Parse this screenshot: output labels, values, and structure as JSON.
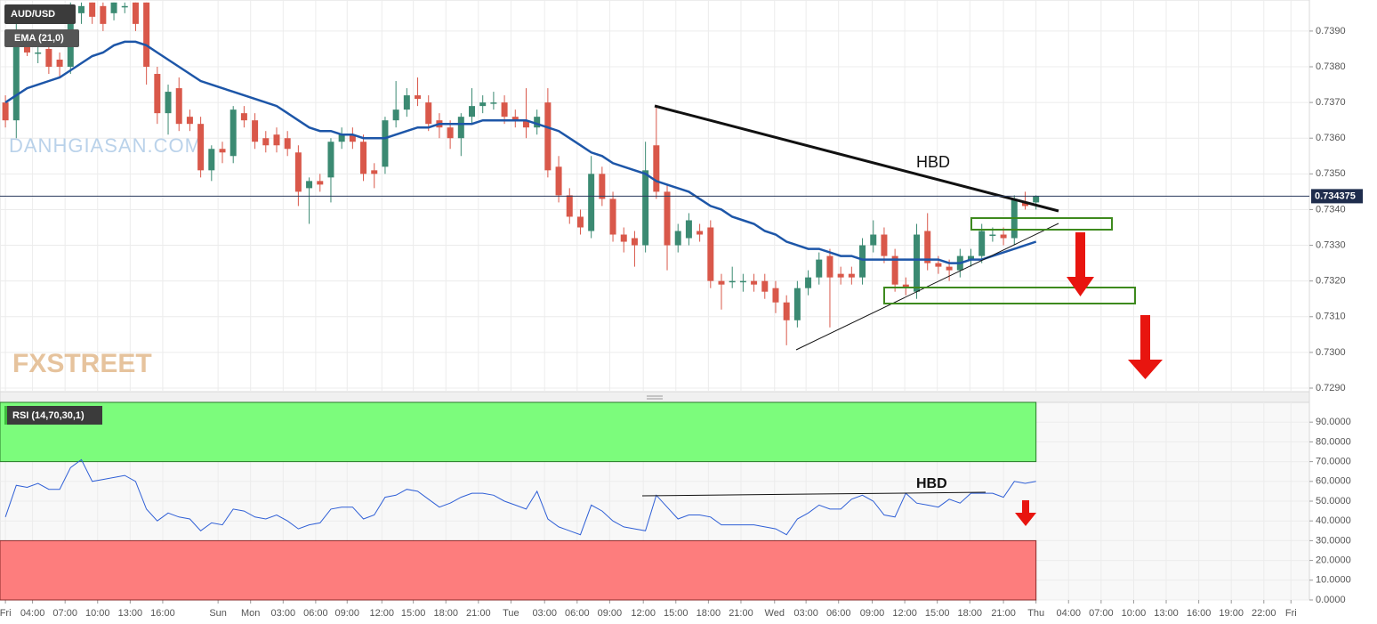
{
  "chart_data": [
    {
      "type": "candlestick",
      "title": "AUD/USD",
      "open": [
        0.737,
        0.7365,
        0.7388,
        0.7384,
        0.7385,
        0.7382,
        0.738,
        0.7395,
        0.7398,
        0.7397,
        0.7395,
        0.7397,
        0.7398,
        0.7398,
        0.7378,
        0.7367,
        0.7374,
        0.7366,
        0.7364,
        0.7351,
        0.7357,
        0.7355,
        0.7367,
        0.7365,
        0.736,
        0.7361,
        0.736,
        0.7356,
        0.7346,
        0.7348,
        0.7349,
        0.7359,
        0.7361,
        0.7359,
        0.7351,
        0.7352,
        0.7365,
        0.7368,
        0.7372,
        0.737,
        0.7365,
        0.7363,
        0.736,
        0.7366,
        0.7369,
        0.737,
        0.737,
        0.7366,
        0.7365,
        0.7363,
        0.737,
        0.7352,
        0.7344,
        0.7338,
        0.7334,
        0.735,
        0.7343,
        0.7333,
        0.7332,
        0.733,
        0.7358,
        0.7345,
        0.733,
        0.7332,
        0.7334,
        0.7335,
        0.732,
        0.732,
        0.732,
        0.732,
        0.732,
        0.7318,
        0.7314,
        0.7309,
        0.7318,
        0.7321,
        0.7327,
        0.7322,
        0.7322,
        0.7321,
        0.733,
        0.7333,
        0.7327,
        0.7319,
        0.7317,
        0.7334,
        0.7325,
        0.7324,
        0.7323,
        0.7326,
        0.7327,
        0.7333,
        0.7333,
        0.7332,
        0.7342,
        0.7342
      ],
      "high": [
        0.7372,
        0.7393,
        0.739,
        0.7386,
        0.7387,
        0.7384,
        0.7398,
        0.7398,
        0.7398,
        0.7398,
        0.7398,
        0.7398,
        0.7398,
        0.7398,
        0.738,
        0.7375,
        0.7377,
        0.7368,
        0.7366,
        0.7358,
        0.7359,
        0.7369,
        0.7369,
        0.7367,
        0.7362,
        0.7363,
        0.7362,
        0.7358,
        0.7349,
        0.735,
        0.736,
        0.7363,
        0.7363,
        0.7361,
        0.7353,
        0.7366,
        0.7376,
        0.7374,
        0.7377,
        0.7372,
        0.7367,
        0.7365,
        0.7367,
        0.7374,
        0.7372,
        0.7373,
        0.7372,
        0.7368,
        0.7374,
        0.7368,
        0.7374,
        0.7355,
        0.7346,
        0.734,
        0.7355,
        0.7352,
        0.7345,
        0.7335,
        0.7334,
        0.7359,
        0.7369,
        0.7347,
        0.7336,
        0.7339,
        0.7336,
        0.7337,
        0.7322,
        0.7324,
        0.7322,
        0.7322,
        0.7322,
        0.732,
        0.7316,
        0.732,
        0.7323,
        0.7328,
        0.7329,
        0.7324,
        0.7324,
        0.7332,
        0.7337,
        0.7335,
        0.7329,
        0.7321,
        0.7336,
        0.7339,
        0.7327,
        0.7326,
        0.7329,
        0.7329,
        0.7336,
        0.7335,
        0.7335,
        0.7344,
        0.7345,
        0.7344
      ],
      "low": [
        0.7363,
        0.736,
        0.7383,
        0.7381,
        0.7378,
        0.7377,
        0.7378,
        0.7392,
        0.7392,
        0.739,
        0.7393,
        0.7395,
        0.739,
        0.7375,
        0.7364,
        0.7361,
        0.7362,
        0.7362,
        0.7349,
        0.7348,
        0.7353,
        0.7353,
        0.7363,
        0.7357,
        0.7356,
        0.7356,
        0.7355,
        0.7341,
        0.7336,
        0.7345,
        0.7342,
        0.7357,
        0.7357,
        0.7348,
        0.7346,
        0.735,
        0.7363,
        0.7366,
        0.7369,
        0.7362,
        0.736,
        0.7357,
        0.7355,
        0.7364,
        0.7367,
        0.7368,
        0.7364,
        0.7363,
        0.736,
        0.7361,
        0.7349,
        0.7342,
        0.7336,
        0.7333,
        0.7332,
        0.7341,
        0.7331,
        0.7328,
        0.7324,
        0.7328,
        0.7343,
        0.7323,
        0.7328,
        0.733,
        0.7331,
        0.7318,
        0.7312,
        0.7318,
        0.7317,
        0.7317,
        0.7315,
        0.7311,
        0.7302,
        0.7307,
        0.7316,
        0.7319,
        0.7307,
        0.7319,
        0.7319,
        0.7319,
        0.7328,
        0.7325,
        0.7317,
        0.7316,
        0.7315,
        0.7323,
        0.7322,
        0.732,
        0.7321,
        0.7324,
        0.7325,
        0.7331,
        0.733,
        0.733,
        0.734,
        0.734
      ],
      "close": [
        0.7365,
        0.7388,
        0.7384,
        0.7384,
        0.738,
        0.738,
        0.7397,
        0.7397,
        0.7394,
        0.7392,
        0.7398,
        0.7397,
        0.7392,
        0.738,
        0.7367,
        0.7373,
        0.7364,
        0.7364,
        0.7351,
        0.7357,
        0.7356,
        0.7368,
        0.7365,
        0.7359,
        0.7358,
        0.7358,
        0.7357,
        0.7345,
        0.7348,
        0.7347,
        0.7359,
        0.7361,
        0.7359,
        0.735,
        0.735,
        0.7365,
        0.7368,
        0.7372,
        0.7371,
        0.7364,
        0.7363,
        0.736,
        0.7366,
        0.7369,
        0.737,
        0.737,
        0.7366,
        0.7365,
        0.7363,
        0.7366,
        0.7351,
        0.7344,
        0.7338,
        0.7335,
        0.735,
        0.7343,
        0.7333,
        0.7331,
        0.733,
        0.7351,
        0.7345,
        0.733,
        0.7334,
        0.7337,
        0.7333,
        0.732,
        0.7319,
        0.732,
        0.732,
        0.7319,
        0.7317,
        0.7314,
        0.7309,
        0.7318,
        0.7321,
        0.7326,
        0.7321,
        0.7321,
        0.7321,
        0.733,
        0.7333,
        0.7327,
        0.7319,
        0.7318,
        0.7333,
        0.7325,
        0.7324,
        0.7323,
        0.7327,
        0.7327,
        0.7334,
        0.7333,
        0.7332,
        0.7343,
        0.7341,
        0.734375
      ],
      "up_color": "#3b8a72",
      "down_color": "#d9584a",
      "overlay": {
        "name": "EMA (21,0)",
        "color": "#1d56a8",
        "values": [
          0.737,
          0.7372,
          0.7374,
          0.7375,
          0.7376,
          0.7377,
          0.7379,
          0.7381,
          0.7383,
          0.7384,
          0.7386,
          0.7387,
          0.7387,
          0.7386,
          0.7384,
          0.7382,
          0.738,
          0.7378,
          0.7376,
          0.7375,
          0.7374,
          0.7373,
          0.7372,
          0.7371,
          0.737,
          0.7369,
          0.7367,
          0.7365,
          0.7363,
          0.7362,
          0.7362,
          0.7361,
          0.7361,
          0.736,
          0.736,
          0.736,
          0.7361,
          0.7362,
          0.7363,
          0.7363,
          0.7364,
          0.7364,
          0.7364,
          0.7364,
          0.7365,
          0.7365,
          0.7365,
          0.7365,
          0.7365,
          0.7364,
          0.7363,
          0.7362,
          0.736,
          0.7358,
          0.7356,
          0.7355,
          0.7353,
          0.7352,
          0.7351,
          0.735,
          0.7348,
          0.7347,
          0.7346,
          0.7345,
          0.7343,
          0.7341,
          0.734,
          0.7338,
          0.7337,
          0.7336,
          0.7334,
          0.7333,
          0.7331,
          0.733,
          0.7329,
          0.7329,
          0.7328,
          0.7327,
          0.7327,
          0.7326,
          0.7326,
          0.7326,
          0.7326,
          0.7326,
          0.7326,
          0.7326,
          0.7326,
          0.7325,
          0.7325,
          0.7326,
          0.7326,
          0.7327,
          0.7328,
          0.7329,
          0.733,
          0.7331
        ]
      },
      "last_price": 0.734375,
      "annotation": "HBD",
      "watermarks": [
        "DANHGIASAN.COM",
        "FXSTREET"
      ],
      "xlim": [
        -0.5,
        120.2
      ],
      "ylim": [
        0.7289,
        0.73987
      ],
      "yticks": [
        {
          "value": 0.729,
          "label": "0.7290"
        },
        {
          "value": 0.73,
          "label": "0.7300"
        },
        {
          "value": 0.731,
          "label": "0.7310"
        },
        {
          "value": 0.732,
          "label": "0.7320"
        },
        {
          "value": 0.733,
          "label": "0.7330"
        },
        {
          "value": 0.734,
          "label": "0.7340"
        },
        {
          "value": 0.735,
          "label": "0.7350"
        },
        {
          "value": 0.736,
          "label": "0.7360"
        },
        {
          "value": 0.737,
          "label": "0.7370"
        },
        {
          "value": 0.738,
          "label": "0.7380"
        },
        {
          "value": 0.739,
          "label": "0.7390"
        }
      ],
      "grid": true
    },
    {
      "type": "line",
      "title": "RSI (14,70,30,1)",
      "color": "#2f5fd6",
      "values": [
        42,
        58,
        57,
        59,
        56,
        56,
        67,
        71,
        60,
        61,
        62,
        63,
        60,
        46,
        40,
        44,
        42,
        41,
        35,
        39,
        38,
        46,
        45,
        42,
        41,
        43,
        40,
        36,
        38,
        39,
        46,
        47,
        47,
        41,
        43,
        52,
        53,
        56,
        55,
        51,
        47,
        49,
        52,
        54,
        54,
        53,
        50,
        48,
        46,
        55,
        41,
        37,
        35,
        33,
        48,
        45,
        40,
        37,
        36,
        35,
        53,
        47,
        41,
        43,
        43,
        42,
        38,
        38,
        38,
        38,
        37,
        36,
        33,
        41,
        44,
        48,
        46,
        46,
        51,
        53,
        50,
        43,
        42,
        54,
        49,
        48,
        47,
        51,
        49,
        54,
        54,
        54,
        52,
        60,
        59,
        60
      ],
      "overbought": 70,
      "oversold": 30,
      "annotation": "HBD",
      "xlim": [
        -0.5,
        120.2
      ],
      "ylim": [
        0,
        100
      ],
      "yticks": [
        {
          "value": 0,
          "label": "0.0000"
        },
        {
          "value": 10,
          "label": "10.0000"
        },
        {
          "value": 20,
          "label": "20.0000"
        },
        {
          "value": 30,
          "label": "30.0000"
        },
        {
          "value": 40,
          "label": "40.0000"
        },
        {
          "value": 50,
          "label": "50.0000"
        },
        {
          "value": 60,
          "label": "60.0000"
        },
        {
          "value": 70,
          "label": "70.0000"
        },
        {
          "value": 80,
          "label": "80.0000"
        },
        {
          "value": 90,
          "label": "90.0000"
        }
      ],
      "xticks": [
        {
          "value": 0,
          "label": "Fri"
        },
        {
          "value": 2.5,
          "label": "04:00"
        },
        {
          "value": 5.5,
          "label": "07:00"
        },
        {
          "value": 8.5,
          "label": "10:00"
        },
        {
          "value": 11.5,
          "label": "13:00"
        },
        {
          "value": 14.5,
          "label": "16:00"
        },
        {
          "value": 19.6,
          "label": "Sun"
        },
        {
          "value": 22.6,
          "label": "Mon"
        },
        {
          "value": 25.6,
          "label": "03:00"
        },
        {
          "value": 28.6,
          "label": "06:00"
        },
        {
          "value": 31.5,
          "label": "09:00"
        },
        {
          "value": 34.7,
          "label": "12:00"
        },
        {
          "value": 37.6,
          "label": "15:00"
        },
        {
          "value": 40.6,
          "label": "18:00"
        },
        {
          "value": 43.6,
          "label": "21:00"
        },
        {
          "value": 46.6,
          "label": "Tue"
        },
        {
          "value": 49.7,
          "label": "03:00"
        },
        {
          "value": 52.7,
          "label": "06:00"
        },
        {
          "value": 55.7,
          "label": "09:00"
        },
        {
          "value": 58.8,
          "label": "12:00"
        },
        {
          "value": 61.8,
          "label": "15:00"
        },
        {
          "value": 64.8,
          "label": "18:00"
        },
        {
          "value": 67.8,
          "label": "21:00"
        },
        {
          "value": 70.9,
          "label": "Wed"
        },
        {
          "value": 73.8,
          "label": "03:00"
        },
        {
          "value": 76.8,
          "label": "06:00"
        },
        {
          "value": 79.9,
          "label": "09:00"
        },
        {
          "value": 82.9,
          "label": "12:00"
        },
        {
          "value": 85.9,
          "label": "15:00"
        },
        {
          "value": 88.9,
          "label": "18:00"
        },
        {
          "value": 92,
          "label": "21:00"
        },
        {
          "value": 95,
          "label": "Thu"
        },
        {
          "value": 98,
          "label": "04:00"
        },
        {
          "value": 101,
          "label": "07:00"
        },
        {
          "value": 104,
          "label": "10:00"
        },
        {
          "value": 107,
          "label": "13:00"
        },
        {
          "value": 110,
          "label": "16:00"
        },
        {
          "value": 113,
          "label": "19:00"
        },
        {
          "value": 116,
          "label": "22:00"
        },
        {
          "value": 118.5,
          "label": "Fri"
        }
      ],
      "grid": true
    }
  ]
}
